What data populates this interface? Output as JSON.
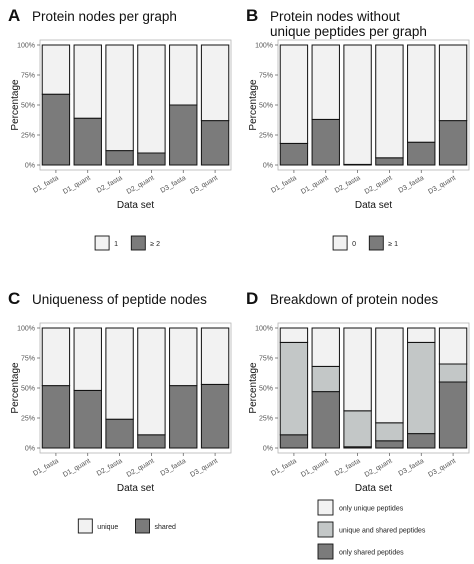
{
  "chart_data": [
    {
      "panel": "A",
      "type": "bar",
      "stacked": true,
      "title": "Protein nodes per graph",
      "xlabel": "Data set",
      "ylabel": "Percentage",
      "ylim": [
        0,
        100
      ],
      "yticks": [
        "0%",
        "25%",
        "50%",
        "75%",
        "100%"
      ],
      "categories": [
        "D1_fasta",
        "D1_quant",
        "D2_fasta",
        "D2_quant",
        "D3_fasta",
        "D3_quant"
      ],
      "series": [
        {
          "name": "≥ 2",
          "color": "#7b7b7b",
          "values": [
            59,
            39,
            12,
            10,
            50,
            37
          ]
        },
        {
          "name": "1",
          "color": "#f2f2f2",
          "values": [
            41,
            61,
            88,
            90,
            50,
            63
          ]
        }
      ],
      "legend": {
        "position": "bottom",
        "layout": "horizontal",
        "items": [
          "1",
          "≥ 2"
        ]
      }
    },
    {
      "panel": "B",
      "type": "bar",
      "stacked": true,
      "title": [
        "Protein nodes without",
        "unique peptides per graph"
      ],
      "xlabel": "Data set",
      "ylabel": "Percentage",
      "ylim": [
        0,
        100
      ],
      "yticks": [
        "0%",
        "25%",
        "50%",
        "75%",
        "100%"
      ],
      "categories": [
        "D1_fasta",
        "D1_quant",
        "D2_fasta",
        "D2_quant",
        "D3_fasta",
        "D3_quant"
      ],
      "series": [
        {
          "name": "≥ 1",
          "color": "#7b7b7b",
          "values": [
            18,
            38,
            0.5,
            6,
            19,
            37
          ]
        },
        {
          "name": "0",
          "color": "#f2f2f2",
          "values": [
            82,
            62,
            99.5,
            94,
            81,
            63
          ]
        }
      ],
      "legend": {
        "position": "bottom",
        "layout": "horizontal",
        "items": [
          "0",
          "≥ 1"
        ]
      }
    },
    {
      "panel": "C",
      "type": "bar",
      "stacked": true,
      "title": "Uniqueness of peptide nodes",
      "xlabel": "Data set",
      "ylabel": "Percentage",
      "ylim": [
        0,
        100
      ],
      "yticks": [
        "0%",
        "25%",
        "50%",
        "75%",
        "100%"
      ],
      "categories": [
        "D1_fasta",
        "D1_quant",
        "D2_fasta",
        "D2_quant",
        "D3_fasta",
        "D3_quant"
      ],
      "series": [
        {
          "name": "shared",
          "color": "#7b7b7b",
          "values": [
            52,
            48,
            24,
            11,
            52,
            53
          ]
        },
        {
          "name": "unique",
          "color": "#f2f2f2",
          "values": [
            48,
            52,
            76,
            89,
            48,
            47
          ]
        }
      ],
      "legend": {
        "position": "bottom",
        "layout": "horizontal",
        "items": [
          "unique",
          "shared"
        ]
      }
    },
    {
      "panel": "D",
      "type": "bar",
      "stacked": true,
      "title": "Breakdown of protein nodes",
      "xlabel": "Data set",
      "ylabel": "Percentage",
      "ylim": [
        0,
        100
      ],
      "yticks": [
        "0%",
        "25%",
        "50%",
        "75%",
        "100%"
      ],
      "categories": [
        "D1_fasta",
        "D1_quant",
        "D2_fasta",
        "D2_quant",
        "D3_fasta",
        "D3_quant"
      ],
      "series": [
        {
          "name": "only shared peptides",
          "color": "#7b7b7b",
          "values": [
            11,
            47,
            1,
            6,
            12,
            55
          ]
        },
        {
          "name": "unique and shared peptides",
          "color": "#c3c7c7",
          "values": [
            77,
            21,
            30,
            15,
            76,
            15
          ]
        },
        {
          "name": "only unique peptides",
          "color": "#f2f2f2",
          "values": [
            12,
            32,
            69,
            79,
            12,
            30
          ]
        }
      ],
      "legend": {
        "position": "bottom",
        "layout": "vertical",
        "items": [
          "only unique peptides",
          "unique and shared peptides",
          "only shared peptides"
        ]
      }
    }
  ]
}
